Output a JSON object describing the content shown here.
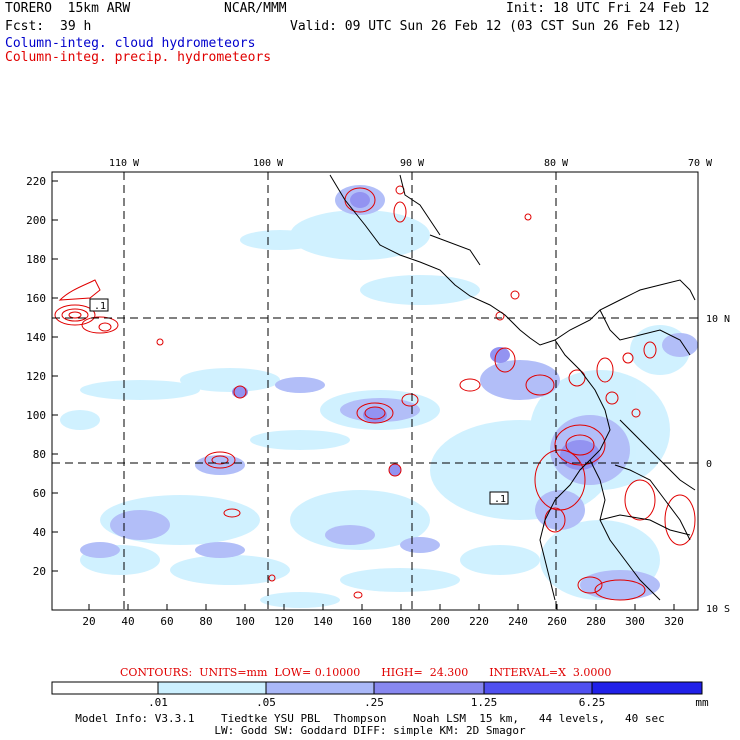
{
  "header": {
    "model": "TORERO  15km ARW",
    "center": "NCAR/MMM",
    "init": "Init: 18 UTC Fri 24 Feb 12",
    "fcst_label": "Fcst:",
    "fcst_hours": "39 h",
    "valid": "Valid: 09 UTC Sun 26 Feb 12 (03 CST Sun 26 Feb 12)",
    "field1": "Column-integ. cloud hydrometeors",
    "field2": "Column-integ. precip. hydrometeors"
  },
  "map": {
    "lon_labels": [
      "110 W",
      "100 W",
      "90 W",
      "80 W",
      "70 W"
    ],
    "lat_labels": [
      "10 N",
      "0",
      "10 S"
    ],
    "y_ticks": [
      "220",
      "200",
      "180",
      "160",
      "140",
      "120",
      "100",
      "80",
      "60",
      "40",
      "20"
    ],
    "x_ticks": [
      "20",
      "40",
      "60",
      "80",
      "100",
      "120",
      "140",
      "160",
      "180",
      "200",
      "220",
      "240",
      "260",
      "280",
      "300",
      "320"
    ],
    "contour_labels": [
      ".1",
      ".1"
    ]
  },
  "contours_info": {
    "text": "CONTOURS:  UNITS=mm  LOW= 0.10000      HIGH=  24.300      INTERVAL=X  3.0000"
  },
  "colorbar": {
    "labels": [
      ".01",
      ".05",
      ".25",
      "1.25",
      "6.25"
    ],
    "unit": "mm",
    "colors": [
      "#ffffff",
      "#ccf0ff",
      "#aab8f8",
      "#8888f0",
      "#5050f0",
      "#2020e8"
    ]
  },
  "footer": {
    "line1": "Model Info: V3.3.1    Tiedtke YSU PBL  Thompson    Noah LSM  15 km,   44 levels,   40 sec",
    "line2": "LW: Godd SW: Goddard DIFF: simple KM: 2D Smagor"
  }
}
